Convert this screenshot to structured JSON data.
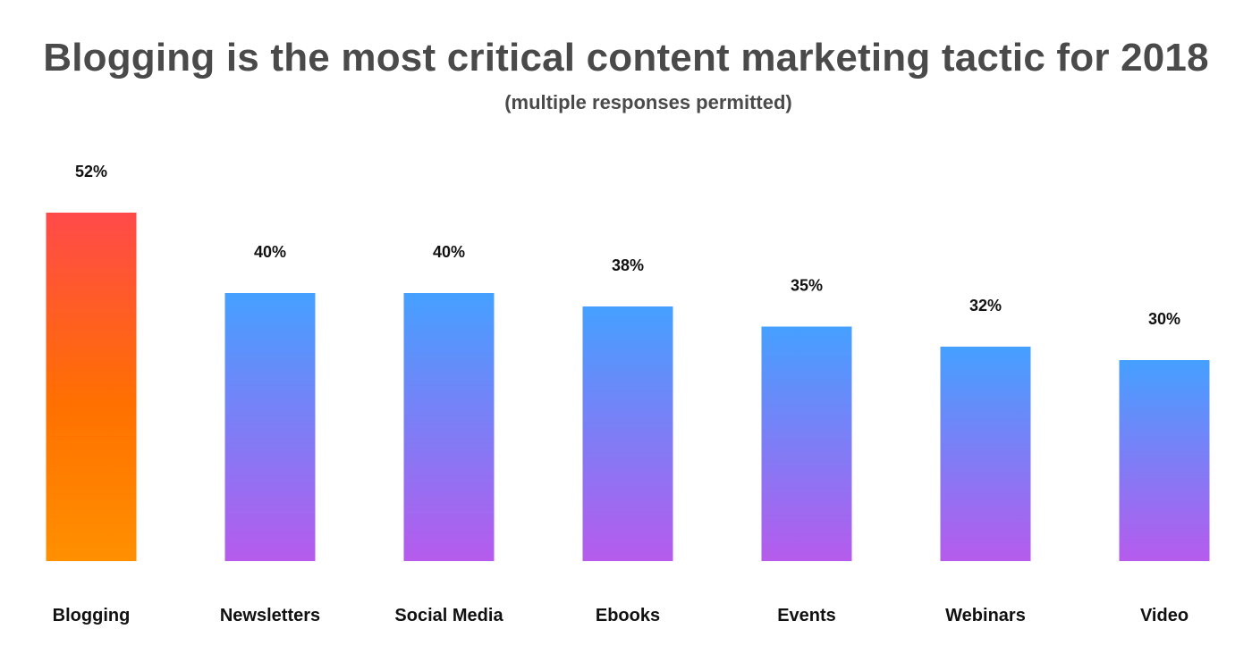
{
  "chart_data": {
    "type": "bar",
    "title": "Blogging is the most critical content marketing tactic for 2018",
    "subtitle": "(multiple responses permitted)",
    "categories": [
      "Blogging",
      "Newsletters",
      "Social Media",
      "Ebooks",
      "Events",
      "Webinars",
      "Video"
    ],
    "values": [
      52,
      40,
      40,
      38,
      35,
      32,
      30
    ],
    "value_labels": [
      "52%",
      "40%",
      "40%",
      "38%",
      "35%",
      "32%",
      "30%"
    ],
    "unit": "%",
    "xlabel": "",
    "ylabel": "",
    "grid": false,
    "legend": "none",
    "colors": {
      "highlight_top": "#ff4a4a",
      "highlight_mid": "#ff7000",
      "highlight_bottom": "#ff9000",
      "default_top": "#45a0ff",
      "default_bottom": "#b65bec"
    }
  }
}
